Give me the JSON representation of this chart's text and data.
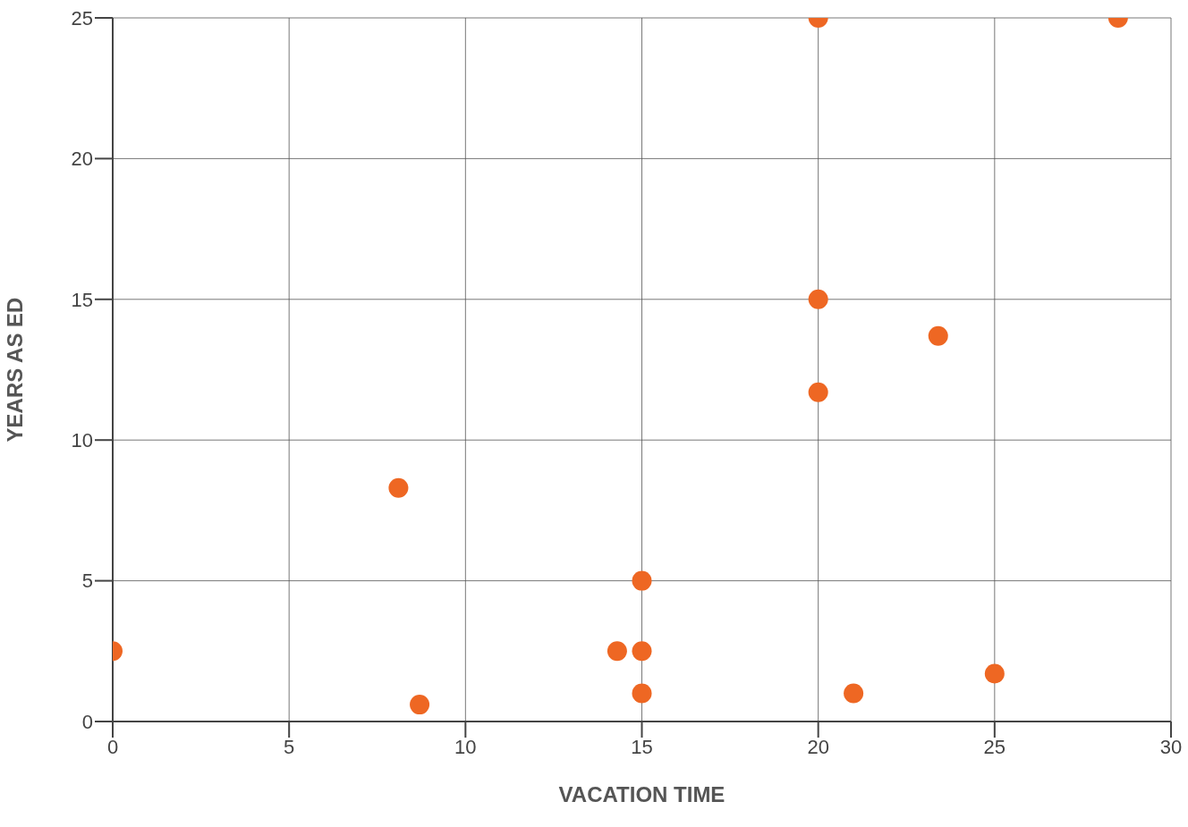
{
  "chart_data": {
    "type": "scatter",
    "xlabel": "VACATION TIME",
    "ylabel": "YEARS AS ED",
    "x": [
      0,
      8.1,
      8.7,
      14.3,
      15,
      15,
      15,
      20,
      20,
      20,
      21,
      23.4,
      25,
      28.5
    ],
    "values": [
      2.5,
      8.3,
      0.6,
      2.5,
      5,
      2.5,
      1,
      25,
      15,
      11.7,
      1,
      13.7,
      1.7,
      25
    ],
    "color": "#ee6723",
    "marker": "circle",
    "xlim": [
      0,
      30
    ],
    "xticks": [
      0,
      5,
      10,
      15,
      20,
      25,
      30
    ],
    "ylim": [
      0,
      25
    ],
    "yticks": [
      0,
      5,
      10,
      15,
      20,
      25
    ],
    "grid": true
  }
}
